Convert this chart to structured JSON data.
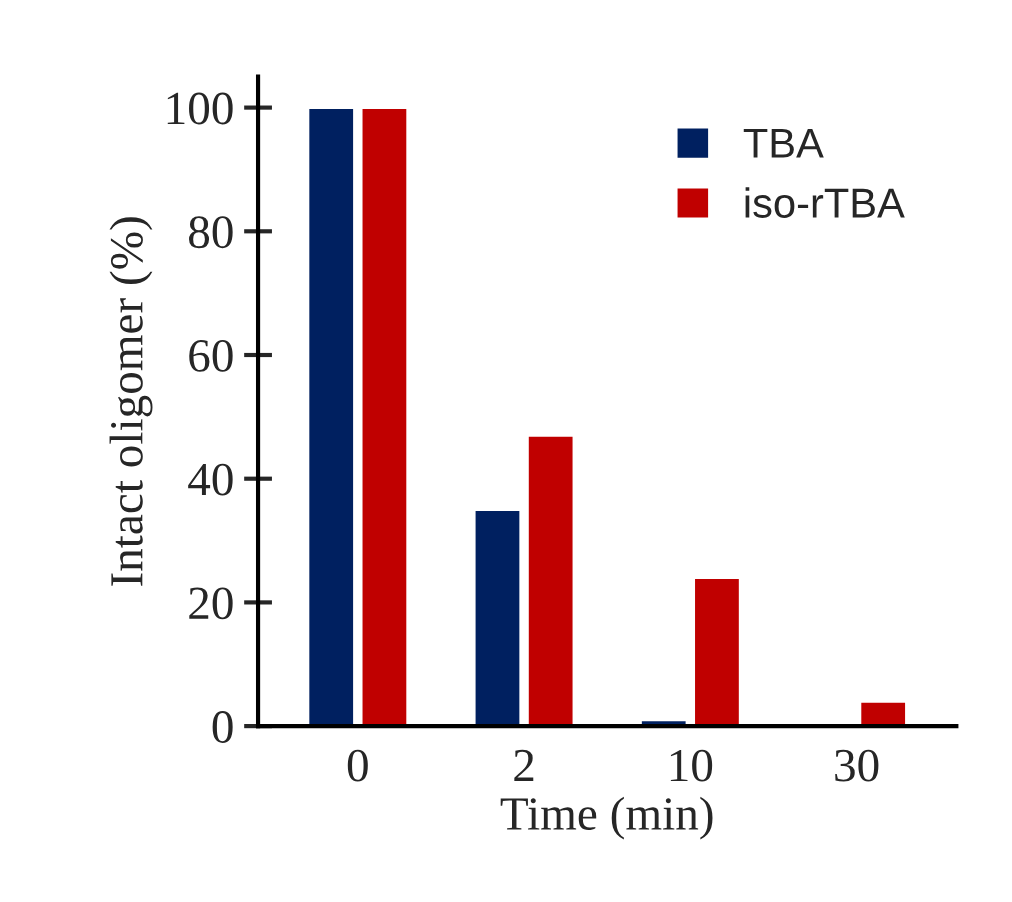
{
  "chart_data": {
    "type": "bar",
    "xlabel": "Time (min)",
    "ylabel": "Intact oligomer (%)",
    "categories": [
      "0",
      "2",
      "10",
      "30"
    ],
    "series": [
      {
        "name": "TBA",
        "color": "#002060",
        "values": [
          100,
          35,
          1,
          null
        ]
      },
      {
        "name": "iso-rTBA",
        "color": "#c00000",
        "values": [
          100,
          47,
          24,
          4
        ]
      }
    ],
    "ylim": [
      0,
      105
    ],
    "yticks": [
      0,
      20,
      40,
      60,
      80,
      100
    ],
    "grid": false,
    "legend": "top right"
  }
}
